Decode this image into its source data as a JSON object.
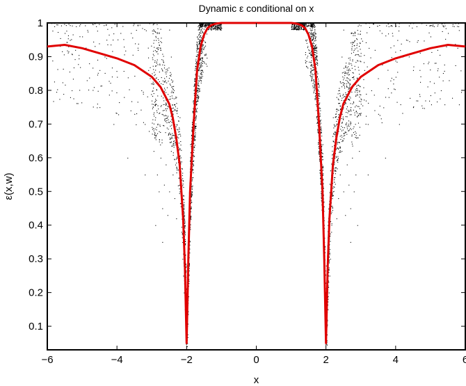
{
  "chart_data": {
    "type": "scatter",
    "title": "Dynamic ε conditional on x",
    "xlabel": "x",
    "ylabel": "ε(x,w)",
    "xlim": [
      -6,
      6
    ],
    "ylim": [
      0.03,
      1.0
    ],
    "xticks": [
      -6,
      -4,
      -2,
      0,
      2,
      4,
      6
    ],
    "yticks": [
      0.1,
      0.2,
      0.3,
      0.4,
      0.5,
      0.6,
      0.7,
      0.8,
      0.9,
      1
    ],
    "xtick_labels": [
      "−6",
      "−4",
      "−2",
      "0",
      "2",
      "4",
      "6"
    ],
    "ytick_labels": [
      "0.1",
      "0.2",
      "0.3",
      "0.4",
      "0.5",
      "0.6",
      "0.7",
      "0.8",
      "0.9",
      "1"
    ],
    "grid": false,
    "legend": "none",
    "colors": {
      "scatter": "#000000",
      "curve": "#e00000",
      "axes": "#000000"
    },
    "series": [
      {
        "kind": "line",
        "x": [
          -6,
          -5.5,
          -5,
          -4.5,
          -4,
          -3.5,
          -3,
          -2.75,
          -2.5,
          -2.4,
          -2.3,
          -2.2,
          -2.1,
          -2.05,
          -2.0,
          -1.95,
          -1.9,
          -1.8,
          -1.7,
          -1.6,
          -1.5,
          -1.4,
          -1.3,
          -1.2,
          -1.1,
          -1.0,
          -0.5,
          0,
          0.5,
          1.0,
          1.1,
          1.2,
          1.3,
          1.4,
          1.5,
          1.6,
          1.7,
          1.8,
          1.9,
          1.95,
          2.0,
          2.05,
          2.1,
          2.2,
          2.3,
          2.4,
          2.5,
          2.75,
          3,
          3.5,
          4,
          4.5,
          5,
          5.5,
          6
        ],
        "y": [
          0.93,
          0.935,
          0.925,
          0.91,
          0.895,
          0.875,
          0.84,
          0.81,
          0.76,
          0.72,
          0.66,
          0.58,
          0.42,
          0.28,
          0.05,
          0.3,
          0.5,
          0.7,
          0.86,
          0.93,
          0.965,
          0.985,
          0.993,
          0.997,
          0.999,
          1.0,
          1.0,
          1.0,
          1.0,
          1.0,
          0.999,
          0.997,
          0.993,
          0.985,
          0.965,
          0.93,
          0.86,
          0.7,
          0.5,
          0.3,
          0.05,
          0.28,
          0.42,
          0.58,
          0.66,
          0.72,
          0.76,
          0.81,
          0.84,
          0.875,
          0.895,
          0.91,
          0.925,
          0.935,
          0.93
        ]
      },
      {
        "kind": "scatter",
        "description_points": "dense cloud of sample points concentrated near x=±2 and x≈±1.7, scattered upper band",
        "points": [
          [
            -5.8,
            0.99
          ],
          [
            -5.5,
            0.97
          ],
          [
            -5.2,
            0.92
          ],
          [
            -5.0,
            0.96
          ],
          [
            -4.8,
            0.88
          ],
          [
            -4.6,
            0.99
          ],
          [
            -4.5,
            0.86
          ],
          [
            -4.3,
            0.95
          ],
          [
            -4.2,
            0.9
          ],
          [
            -4.0,
            0.84
          ],
          [
            -3.9,
            0.97
          ],
          [
            -3.8,
            0.78
          ],
          [
            -3.6,
            0.88
          ],
          [
            -3.5,
            0.73
          ],
          [
            -3.4,
            0.92
          ],
          [
            -3.3,
            0.8
          ],
          [
            -3.2,
            0.7
          ],
          [
            -3.1,
            0.86
          ],
          [
            -3.0,
            0.76
          ],
          [
            -2.95,
            0.62
          ],
          [
            -2.9,
            0.66
          ],
          [
            -2.85,
            0.55
          ],
          [
            -2.8,
            0.5
          ],
          [
            -2.75,
            0.6
          ],
          [
            -2.7,
            0.45
          ],
          [
            -2.65,
            0.52
          ],
          [
            -2.6,
            0.58
          ],
          [
            -2.55,
            0.43
          ],
          [
            -2.5,
            0.5
          ],
          [
            -2.45,
            0.62
          ],
          [
            -2.4,
            0.55
          ],
          [
            -2.35,
            0.48
          ],
          [
            -2.3,
            0.42
          ],
          [
            -2.25,
            0.6
          ],
          [
            -2.2,
            0.5
          ],
          [
            -2.15,
            0.38
          ],
          [
            -2.12,
            0.3
          ],
          [
            -2.1,
            0.25
          ],
          [
            -2.08,
            0.2
          ],
          [
            -2.05,
            0.15
          ],
          [
            -2.03,
            0.12
          ],
          [
            -2.01,
            0.09
          ],
          [
            -1.99,
            0.06
          ],
          [
            -1.97,
            0.14
          ],
          [
            -1.95,
            0.22
          ],
          [
            -1.92,
            0.33
          ],
          [
            -1.9,
            0.45
          ],
          [
            -1.87,
            0.55
          ],
          [
            -1.85,
            0.62
          ],
          [
            -1.82,
            0.7
          ],
          [
            -1.8,
            0.76
          ],
          [
            -1.78,
            0.82
          ],
          [
            -1.75,
            0.88
          ],
          [
            -1.72,
            0.92
          ],
          [
            -1.7,
            0.96
          ],
          [
            -1.68,
            0.99
          ],
          [
            -1.65,
            0.94
          ],
          [
            -1.6,
            0.98
          ],
          [
            -1.55,
            1.0
          ],
          [
            -1.5,
            0.97
          ],
          [
            -1.45,
            0.99
          ],
          [
            -1.4,
            1.0
          ],
          [
            -2.3,
            0.78
          ],
          [
            -2.6,
            0.85
          ],
          [
            -2.45,
            0.9
          ],
          [
            -2.2,
            0.72
          ],
          [
            -1.9,
            0.64
          ],
          [
            -1.85,
            0.5
          ],
          [
            -2.0,
            0.28
          ],
          [
            -2.05,
            0.4
          ],
          [
            -3.7,
            0.6
          ],
          [
            -4.1,
            0.7
          ],
          [
            -3.2,
            0.55
          ],
          [
            -2.7,
            0.35
          ],
          [
            -2.9,
            0.4
          ],
          [
            -4.5,
            0.75
          ],
          [
            -5.3,
            0.8
          ],
          [
            -3.6,
            0.97
          ],
          [
            -2.5,
            0.98
          ],
          [
            -1.8,
            1.0
          ],
          [
            5.8,
            0.99
          ],
          [
            5.5,
            0.97
          ],
          [
            5.2,
            0.92
          ],
          [
            5.0,
            0.96
          ],
          [
            4.8,
            0.88
          ],
          [
            4.6,
            0.99
          ],
          [
            4.5,
            0.86
          ],
          [
            4.3,
            0.95
          ],
          [
            4.2,
            0.9
          ],
          [
            4.0,
            0.84
          ],
          [
            3.9,
            0.97
          ],
          [
            3.8,
            0.78
          ],
          [
            3.6,
            0.88
          ],
          [
            3.5,
            0.73
          ],
          [
            3.4,
            0.92
          ],
          [
            3.3,
            0.8
          ],
          [
            3.2,
            0.7
          ],
          [
            3.1,
            0.86
          ],
          [
            3.0,
            0.76
          ],
          [
            2.95,
            0.62
          ],
          [
            2.9,
            0.66
          ],
          [
            2.85,
            0.55
          ],
          [
            2.8,
            0.5
          ],
          [
            2.75,
            0.6
          ],
          [
            2.7,
            0.45
          ],
          [
            2.65,
            0.52
          ],
          [
            2.6,
            0.58
          ],
          [
            2.55,
            0.43
          ],
          [
            2.5,
            0.5
          ],
          [
            2.45,
            0.62
          ],
          [
            2.4,
            0.55
          ],
          [
            2.35,
            0.48
          ],
          [
            2.3,
            0.42
          ],
          [
            2.25,
            0.6
          ],
          [
            2.2,
            0.5
          ],
          [
            2.15,
            0.38
          ],
          [
            2.12,
            0.3
          ],
          [
            2.1,
            0.25
          ],
          [
            2.08,
            0.2
          ],
          [
            2.05,
            0.15
          ],
          [
            2.03,
            0.12
          ],
          [
            2.01,
            0.09
          ],
          [
            1.99,
            0.06
          ],
          [
            1.97,
            0.14
          ],
          [
            1.95,
            0.22
          ],
          [
            1.92,
            0.33
          ],
          [
            1.9,
            0.45
          ],
          [
            1.87,
            0.55
          ],
          [
            1.85,
            0.62
          ],
          [
            1.82,
            0.7
          ],
          [
            1.8,
            0.76
          ],
          [
            1.78,
            0.82
          ],
          [
            1.75,
            0.88
          ],
          [
            1.72,
            0.92
          ],
          [
            1.7,
            0.96
          ],
          [
            1.68,
            0.99
          ],
          [
            1.65,
            0.94
          ],
          [
            1.6,
            0.98
          ],
          [
            1.55,
            1.0
          ],
          [
            1.5,
            0.97
          ],
          [
            1.45,
            0.99
          ],
          [
            1.4,
            1.0
          ],
          [
            2.3,
            0.78
          ],
          [
            2.6,
            0.85
          ],
          [
            2.45,
            0.9
          ],
          [
            2.2,
            0.72
          ],
          [
            1.9,
            0.64
          ],
          [
            1.85,
            0.5
          ],
          [
            2.0,
            0.28
          ],
          [
            2.05,
            0.4
          ],
          [
            3.7,
            0.6
          ],
          [
            4.1,
            0.7
          ],
          [
            3.2,
            0.55
          ],
          [
            2.7,
            0.35
          ],
          [
            2.9,
            0.4
          ],
          [
            4.5,
            0.75
          ],
          [
            5.3,
            0.8
          ],
          [
            3.6,
            0.97
          ],
          [
            2.5,
            0.98
          ],
          [
            1.8,
            1.0
          ]
        ]
      }
    ]
  }
}
